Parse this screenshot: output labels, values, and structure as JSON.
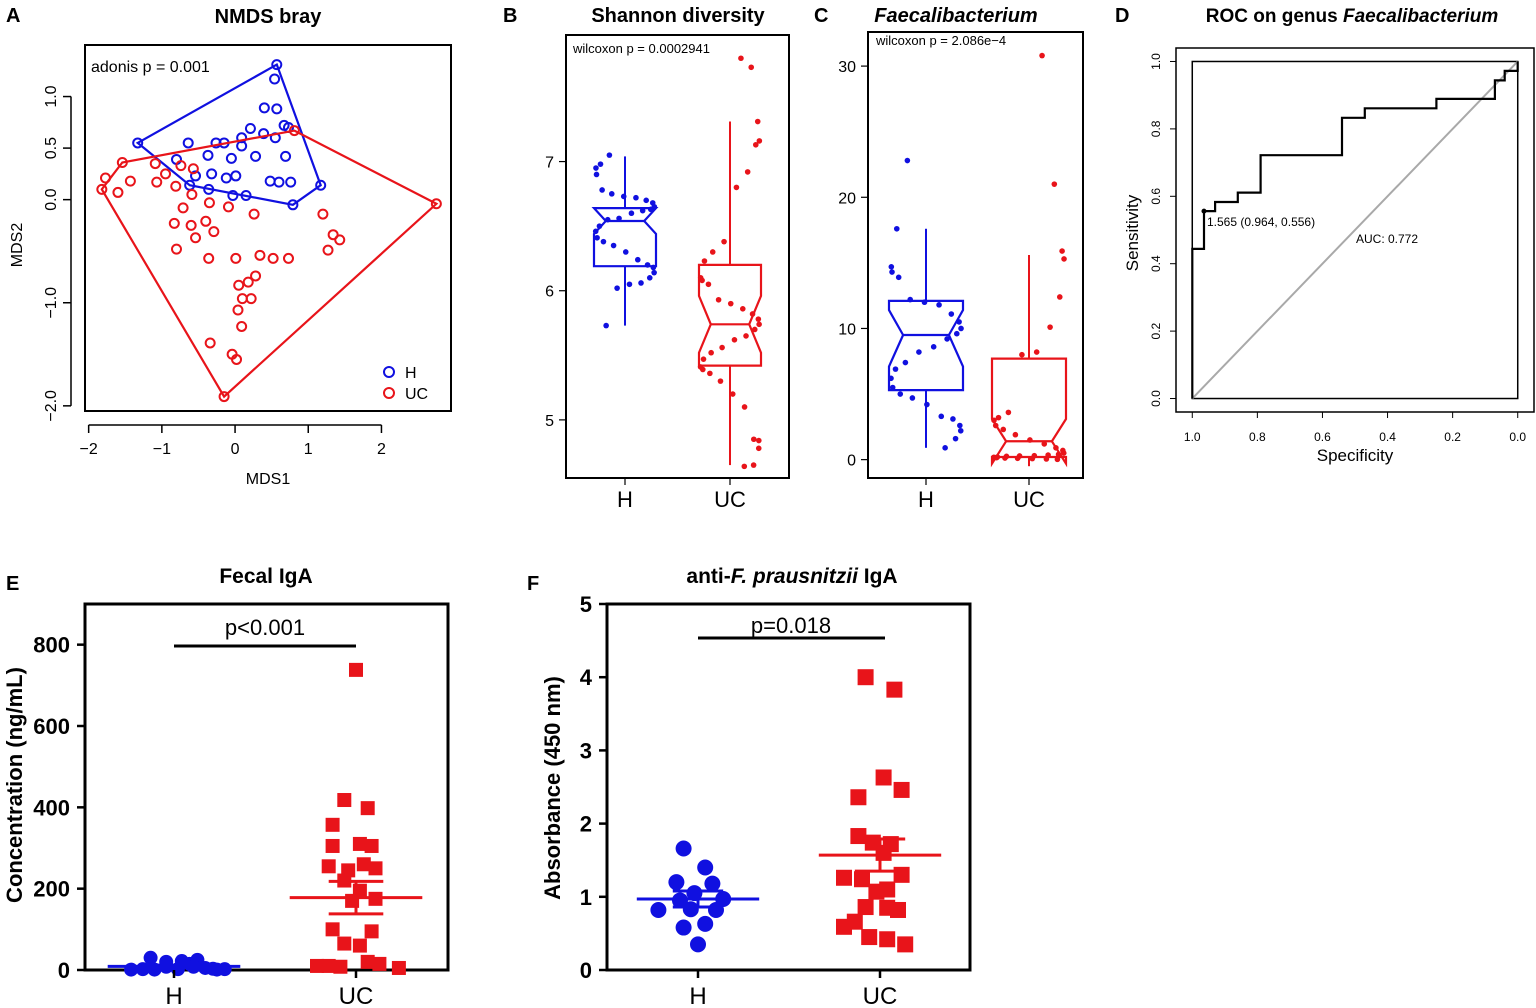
{
  "colors": {
    "H": "#1010e0",
    "UC": "#e8141a",
    "axis": "#000000",
    "diag": "#a9a9a9"
  },
  "chart_data": [
    {
      "panel": "A",
      "type": "scatter",
      "title": "NMDS bray",
      "xlabel": "MDS1",
      "ylabel": "MDS2",
      "xlim": [
        -2.05,
        2.95
      ],
      "ylim": [
        -2.05,
        1.5
      ],
      "xticks": [
        -2,
        -1,
        0,
        1,
        2
      ],
      "xtick_labels": [
        "−2",
        "−1",
        "0",
        "1",
        "2"
      ],
      "yticks": [
        -2,
        -1,
        0,
        0.5,
        1
      ],
      "ytick_labels": [
        "−2.0",
        "−1.0",
        "0.0",
        "0.5",
        "1.0"
      ],
      "annotation": "adonis p = 0.001",
      "legend": {
        "position": "bottom-right",
        "entries": [
          "H",
          "UC"
        ]
      },
      "series": [
        {
          "name": "H",
          "points": [
            [
              0.57,
              1.31
            ],
            [
              0.54,
              1.17
            ],
            [
              0.4,
              0.89
            ],
            [
              0.57,
              0.88
            ],
            [
              0.67,
              0.72
            ],
            [
              0.73,
              0.7
            ],
            [
              0.21,
              0.69
            ],
            [
              0.09,
              0.6
            ],
            [
              0.39,
              0.64
            ],
            [
              0.55,
              0.6
            ],
            [
              -1.33,
              0.55
            ],
            [
              -0.64,
              0.55
            ],
            [
              -0.26,
              0.55
            ],
            [
              -0.15,
              0.55
            ],
            [
              0.09,
              0.52
            ],
            [
              -0.37,
              0.43
            ],
            [
              -0.05,
              0.4
            ],
            [
              0.28,
              0.42
            ],
            [
              0.69,
              0.42
            ],
            [
              -0.8,
              0.39
            ],
            [
              -0.54,
              0.23
            ],
            [
              -0.32,
              0.25
            ],
            [
              0.01,
              0.23
            ],
            [
              -0.12,
              0.21
            ],
            [
              -0.62,
              0.14
            ],
            [
              0.48,
              0.18
            ],
            [
              0.6,
              0.17
            ],
            [
              0.76,
              0.17
            ],
            [
              -0.36,
              0.1
            ],
            [
              -0.03,
              0.04
            ],
            [
              0.15,
              0.04
            ],
            [
              1.17,
              0.14
            ],
            [
              0.79,
              -0.05
            ]
          ],
          "hull": [
            [
              -1.33,
              0.55
            ],
            [
              0.57,
              1.31
            ],
            [
              1.17,
              0.14
            ],
            [
              0.79,
              -0.05
            ],
            [
              -0.62,
              0.14
            ]
          ]
        },
        {
          "name": "UC",
          "points": [
            [
              0.81,
              0.67
            ],
            [
              -1.54,
              0.36
            ],
            [
              -1.09,
              0.35
            ],
            [
              -0.74,
              0.33
            ],
            [
              -0.57,
              0.3
            ],
            [
              -0.95,
              0.25
            ],
            [
              -1.77,
              0.21
            ],
            [
              -1.43,
              0.18
            ],
            [
              -1.82,
              0.1
            ],
            [
              -1.6,
              0.07
            ],
            [
              -1.07,
              0.17
            ],
            [
              -0.81,
              0.13
            ],
            [
              -0.59,
              0.05
            ],
            [
              -0.35,
              -0.03
            ],
            [
              -0.71,
              -0.08
            ],
            [
              -0.09,
              -0.07
            ],
            [
              0.26,
              -0.14
            ],
            [
              -0.83,
              -0.23
            ],
            [
              -0.6,
              -0.25
            ],
            [
              -0.4,
              -0.21
            ],
            [
              -0.29,
              -0.31
            ],
            [
              -0.54,
              -0.37
            ],
            [
              1.2,
              -0.14
            ],
            [
              1.34,
              -0.34
            ],
            [
              1.43,
              -0.39
            ],
            [
              -0.8,
              -0.48
            ],
            [
              -0.36,
              -0.57
            ],
            [
              0.01,
              -0.57
            ],
            [
              0.34,
              -0.54
            ],
            [
              0.52,
              -0.57
            ],
            [
              0.73,
              -0.57
            ],
            [
              0.28,
              -0.74
            ],
            [
              1.27,
              -0.49
            ],
            [
              0.05,
              -0.83
            ],
            [
              0.18,
              -0.8
            ],
            [
              0.1,
              -0.96
            ],
            [
              0.22,
              -0.96
            ],
            [
              0.04,
              -1.07
            ],
            [
              0.09,
              -1.23
            ],
            [
              -0.34,
              -1.39
            ],
            [
              -0.04,
              -1.5
            ],
            [
              0.02,
              -1.55
            ],
            [
              -0.15,
              -1.91
            ],
            [
              2.75,
              -0.04
            ]
          ],
          "hull": [
            [
              -1.82,
              0.1
            ],
            [
              -1.54,
              0.36
            ],
            [
              0.81,
              0.67
            ],
            [
              2.75,
              -0.04
            ],
            [
              -0.15,
              -1.91
            ]
          ]
        }
      ]
    },
    {
      "panel": "B",
      "type": "box",
      "title": "Shannon diversity",
      "categories": [
        "H",
        "UC"
      ],
      "ylim": [
        4.55,
        7.98
      ],
      "yticks": [
        5,
        6,
        7
      ],
      "ytick_labels": [
        "5",
        "6",
        "7"
      ],
      "annotation": "wilcoxon p = 0.0002941",
      "boxes": [
        {
          "name": "H",
          "min": 5.73,
          "q1": 6.19,
          "median": 6.54,
          "q3": 6.64,
          "max": 7.04,
          "notch_low": 6.44,
          "notch_high": 6.64
        },
        {
          "name": "UC",
          "min": 4.65,
          "q1": 5.42,
          "median": 5.74,
          "q3": 6.2,
          "max": 7.31,
          "notch_low": 5.52,
          "notch_high": 5.96
        }
      ],
      "points": {
        "H": [
          7.05,
          6.98,
          6.95,
          6.9,
          6.78,
          6.75,
          6.73,
          6.72,
          6.7,
          6.68,
          6.65,
          6.63,
          6.62,
          6.6,
          6.56,
          6.55,
          6.5,
          6.46,
          6.41,
          6.38,
          6.35,
          6.3,
          6.24,
          6.2,
          6.18,
          6.14,
          6.1,
          6.06,
          6.05,
          6.02,
          5.73
        ],
        "UC": [
          7.8,
          7.73,
          7.31,
          7.16,
          7.13,
          6.92,
          6.8,
          6.38,
          6.3,
          6.23,
          6.1,
          6.08,
          6.05,
          5.93,
          5.9,
          5.86,
          5.82,
          5.78,
          5.74,
          5.7,
          5.65,
          5.62,
          5.56,
          5.52,
          5.47,
          5.41,
          5.39,
          5.36,
          5.3,
          5.2,
          5.1,
          4.85,
          4.84,
          4.78,
          4.65,
          4.64
        ]
      }
    },
    {
      "panel": "C",
      "type": "box",
      "title": "Faecalibacterium",
      "categories": [
        "H",
        "UC"
      ],
      "ylim": [
        -1.4,
        32.6
      ],
      "yticks": [
        0,
        10,
        20,
        30
      ],
      "ytick_labels": [
        "0",
        "10",
        "20",
        "30"
      ],
      "annotation": "wilcoxon p = 2.086e−4",
      "boxes": [
        {
          "name": "H",
          "min": 0.9,
          "q1": 5.3,
          "median": 9.5,
          "q3": 12.1,
          "max": 17.6,
          "notch_low": 7.1,
          "notch_high": 11.4
        },
        {
          "name": "UC",
          "min": -0.5,
          "q1": 0.2,
          "median": 1.4,
          "q3": 7.7,
          "max": 15.6,
          "notch_low": -0.3,
          "notch_high": 3.1
        }
      ],
      "points": {
        "H": [
          22.8,
          17.6,
          14.7,
          14.3,
          13.9,
          12.2,
          12.0,
          11.8,
          11.1,
          10.5,
          10.0,
          9.6,
          9.2,
          8.6,
          8.2,
          7.4,
          6.9,
          6.2,
          5.5,
          5.0,
          4.7,
          4.2,
          3.3,
          3.1,
          2.6,
          2.2,
          1.6,
          0.9
        ],
        "UC": [
          30.8,
          21.0,
          15.9,
          15.3,
          12.4,
          10.1,
          8.2,
          8.0,
          3.6,
          3.2,
          3.0,
          2.6,
          2.3,
          1.9,
          1.5,
          1.2,
          0.9,
          0.7,
          0.5,
          0.4,
          0.35,
          0.3,
          0.28,
          0.25,
          0.2,
          0.18,
          0.15,
          0.12,
          0.1,
          0.08,
          0.05,
          0.02
        ]
      }
    },
    {
      "panel": "D",
      "type": "line",
      "title_prefix": "ROC on genus ",
      "title_italic": "Faecalibacterium",
      "xlabel": "Specificity",
      "ylabel": "Sensitivity",
      "xlim": [
        1.05,
        -0.05
      ],
      "ylim": [
        -0.04,
        1.04
      ],
      "xticks": [
        1.0,
        0.8,
        0.6,
        0.4,
        0.2,
        0.0
      ],
      "xtick_labels": [
        "1.0",
        "0.8",
        "0.6",
        "0.4",
        "0.2",
        "0.0"
      ],
      "yticks": [
        0.0,
        0.2,
        0.4,
        0.6,
        0.8,
        1.0
      ],
      "ytick_labels": [
        "0.0",
        "0.2",
        "0.4",
        "0.6",
        "0.8",
        "1.0"
      ],
      "threshold_label": "1.565 (0.964, 0.556)",
      "auc_label": "AUC: 0.772",
      "roc": [
        [
          1.0,
          0.0
        ],
        [
          1.0,
          0.444
        ],
        [
          0.964,
          0.444
        ],
        [
          0.964,
          0.556
        ],
        [
          0.93,
          0.556
        ],
        [
          0.93,
          0.583
        ],
        [
          0.86,
          0.583
        ],
        [
          0.86,
          0.611
        ],
        [
          0.79,
          0.611
        ],
        [
          0.79,
          0.722
        ],
        [
          0.54,
          0.722
        ],
        [
          0.54,
          0.833
        ],
        [
          0.47,
          0.833
        ],
        [
          0.47,
          0.861
        ],
        [
          0.25,
          0.861
        ],
        [
          0.25,
          0.889
        ],
        [
          0.07,
          0.889
        ],
        [
          0.07,
          0.944
        ],
        [
          0.04,
          0.944
        ],
        [
          0.04,
          0.972
        ],
        [
          0.0,
          0.972
        ],
        [
          0.0,
          1.0
        ]
      ]
    },
    {
      "panel": "E",
      "type": "scatter",
      "title": "Fecal IgA",
      "categories": [
        "H",
        "UC"
      ],
      "ylabel": "Concentration (ng/mL)",
      "ylim": [
        0,
        900
      ],
      "yticks": [
        0,
        200,
        400,
        600,
        800
      ],
      "ytick_labels": [
        "0",
        "200",
        "400",
        "600",
        "800"
      ],
      "annotation": "p<0.001",
      "series": [
        {
          "name": "H",
          "mean": 9,
          "sem": 3,
          "points": [
            [
              -0.55,
              1
            ],
            [
              -0.4,
              2
            ],
            [
              -0.25,
              1
            ],
            [
              -0.1,
              8
            ],
            [
              0.05,
              2
            ],
            [
              0.2,
              15
            ],
            [
              0.4,
              5
            ],
            [
              0.55,
              1
            ],
            [
              -0.3,
              30
            ],
            [
              -0.1,
              20
            ],
            [
              0.1,
              22
            ],
            [
              0.3,
              25
            ],
            [
              0.5,
              3
            ],
            [
              0.65,
              2
            ],
            [
              0.25,
              8
            ]
          ]
        },
        {
          "name": "UC",
          "mean": 178,
          "sem": 40,
          "points": [
            [
              0,
              738
            ],
            [
              -0.15,
              418
            ],
            [
              0.15,
              398
            ],
            [
              -0.3,
              357
            ],
            [
              -0.3,
              305
            ],
            [
              0.05,
              310
            ],
            [
              0.2,
              305
            ],
            [
              -0.35,
              255
            ],
            [
              0.1,
              260
            ],
            [
              -0.1,
              245
            ],
            [
              0.25,
              250
            ],
            [
              -0.15,
              220
            ],
            [
              0.05,
              195
            ],
            [
              0.25,
              175
            ],
            [
              -0.05,
              170
            ],
            [
              -0.3,
              100
            ],
            [
              0.2,
              95
            ],
            [
              -0.15,
              65
            ],
            [
              0.05,
              60
            ],
            [
              -0.5,
              10
            ],
            [
              -0.35,
              10
            ],
            [
              -0.2,
              8
            ],
            [
              0.15,
              20
            ],
            [
              0.3,
              15
            ],
            [
              0.55,
              5
            ]
          ]
        }
      ]
    },
    {
      "panel": "F",
      "type": "scatter",
      "title_prefix": "anti-",
      "title_italic": "F. prausnitzii",
      "title_suffix": " IgA",
      "categories": [
        "H",
        "UC"
      ],
      "ylabel": "Absorbance (450 nm)",
      "ylim": [
        0,
        5
      ],
      "yticks": [
        0,
        1,
        2,
        3,
        4,
        5
      ],
      "ytick_labels": [
        "0",
        "1",
        "2",
        "3",
        "4",
        "5"
      ],
      "annotation": "p=0.018",
      "series": [
        {
          "name": "H",
          "mean": 0.97,
          "sem": 0.11,
          "points": [
            [
              -0.2,
              1.66
            ],
            [
              0.1,
              1.4
            ],
            [
              -0.3,
              1.2
            ],
            [
              0.2,
              1.18
            ],
            [
              -0.05,
              1.05
            ],
            [
              -0.25,
              0.95
            ],
            [
              0.35,
              0.97
            ],
            [
              -0.55,
              0.82
            ],
            [
              0.25,
              0.82
            ],
            [
              -0.1,
              0.83
            ],
            [
              0.1,
              0.63
            ],
            [
              -0.2,
              0.58
            ],
            [
              0,
              0.35
            ]
          ]
        },
        {
          "name": "UC",
          "mean": 1.57,
          "sem": 0.22,
          "points": [
            [
              -0.2,
              4.0
            ],
            [
              0.2,
              3.83
            ],
            [
              0.05,
              2.63
            ],
            [
              0.3,
              2.46
            ],
            [
              -0.3,
              2.36
            ],
            [
              -0.3,
              1.83
            ],
            [
              -0.1,
              1.74
            ],
            [
              0.15,
              1.72
            ],
            [
              0.05,
              1.6
            ],
            [
              -0.5,
              1.26
            ],
            [
              0.3,
              1.3
            ],
            [
              -0.25,
              1.24
            ],
            [
              -0.05,
              1.07
            ],
            [
              0.1,
              1.1
            ],
            [
              -0.2,
              0.86
            ],
            [
              0.1,
              0.85
            ],
            [
              -0.35,
              0.66
            ],
            [
              0.25,
              0.82
            ],
            [
              -0.5,
              0.59
            ],
            [
              -0.15,
              0.45
            ],
            [
              0.1,
              0.42
            ],
            [
              0.35,
              0.35
            ]
          ]
        }
      ]
    }
  ],
  "panel_letters": [
    "A",
    "B",
    "C",
    "D",
    "E",
    "F"
  ]
}
